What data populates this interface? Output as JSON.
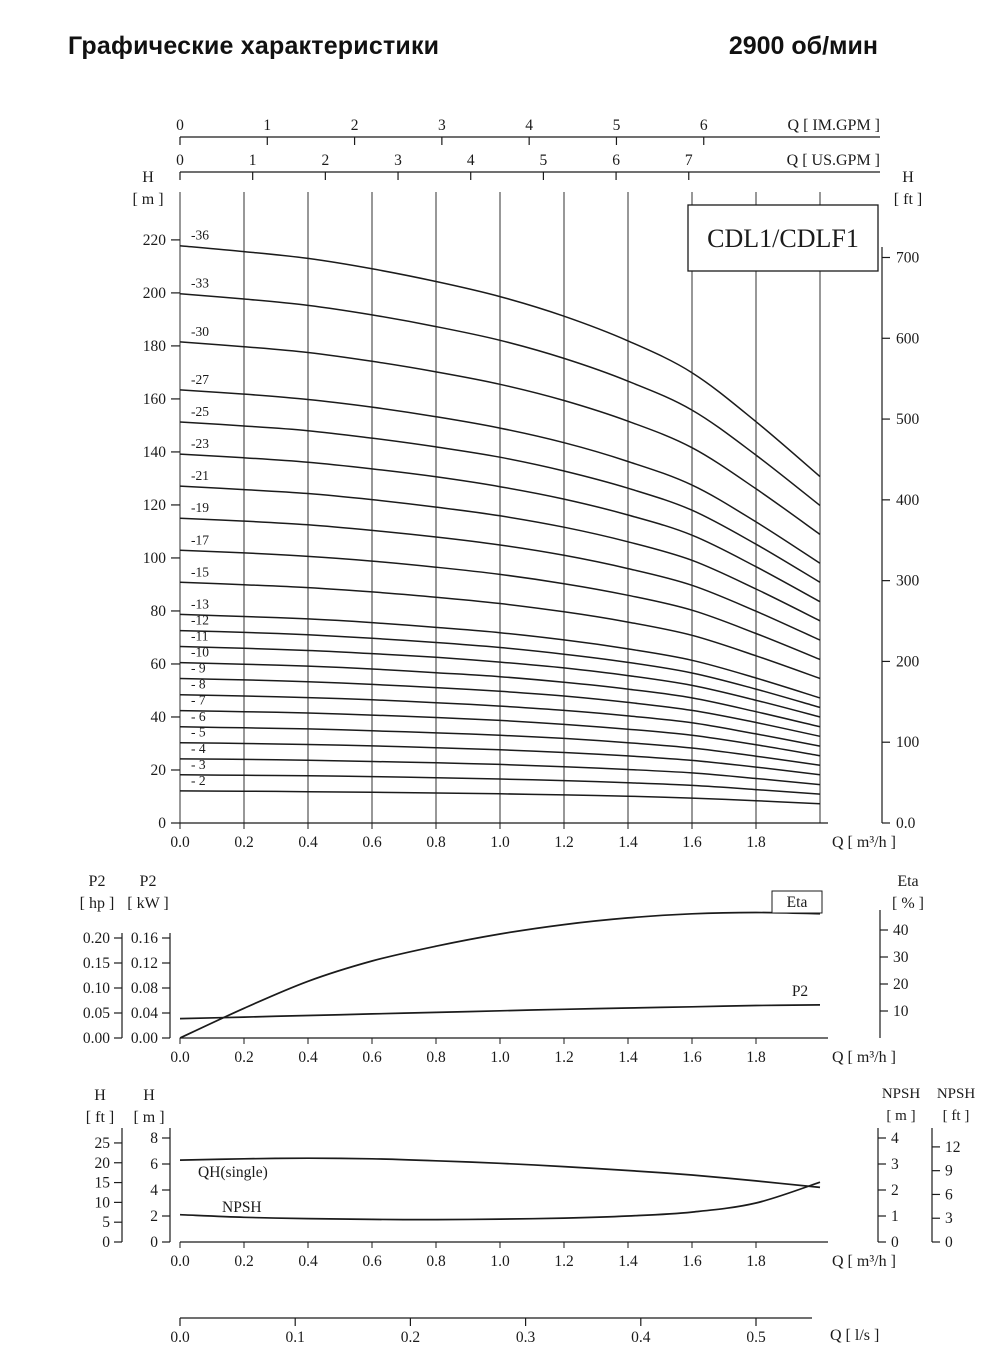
{
  "title": "Графические характеристики",
  "rpm": "2900 об/мин",
  "model": "CDL1/CDLF1",
  "colors": {
    "ink": "#1b1b1b",
    "background": "#ffffff"
  },
  "chart_data": [
    {
      "id": "hq",
      "type": "line",
      "title": "CDL1/CDLF1",
      "x": [
        0,
        0.2,
        0.4,
        0.6,
        0.8,
        1.0,
        1.2,
        1.4,
        1.6,
        1.8,
        2.0
      ],
      "x_axis": {
        "label": "Q [ m³/h ]",
        "tick_labels": [
          "0.0",
          "0.2",
          "0.4",
          "0.6",
          "0.8",
          "1.0",
          "1.2",
          "1.4",
          "1.6",
          "1.8"
        ],
        "range": [
          0,
          2.0
        ],
        "grid": true
      },
      "x_top_im": {
        "label": "Q [ IM.GPM ]",
        "ticks": [
          "0",
          "1",
          "2",
          "3",
          "4",
          "5",
          "6"
        ]
      },
      "x_top_us": {
        "label": "Q [ US.GPM ]",
        "ticks": [
          "0",
          "1",
          "2",
          "3",
          "4",
          "5",
          "6",
          "7"
        ]
      },
      "y_left": {
        "name": "H",
        "unit": "[ m ]",
        "ticks": [
          0,
          20,
          40,
          60,
          80,
          100,
          120,
          140,
          160,
          180,
          200,
          220
        ],
        "range": [
          0,
          238
        ]
      },
      "y_right": {
        "name": "H",
        "unit": "[ ft ]",
        "tick_labels": [
          "0.0",
          "100",
          "200",
          "300",
          "400",
          "500",
          "600",
          "700"
        ]
      },
      "series": [
        {
          "label": "-36",
          "stages": 36,
          "H_m": [
            217.8,
            215.6,
            213.0,
            209.1,
            204.3,
            198.6,
            191.2,
            181.9,
            169.9,
            151.4,
            130.7
          ]
        },
        {
          "label": "-33",
          "stages": 33,
          "H_m": [
            199.7,
            197.7,
            195.3,
            191.7,
            187.3,
            182.1,
            175.3,
            166.7,
            155.8,
            138.8,
            119.8
          ]
        },
        {
          "label": "-30",
          "stages": 30,
          "H_m": [
            181.5,
            179.7,
            177.5,
            174.2,
            170.2,
            165.5,
            159.4,
            151.6,
            141.6,
            126.1,
            108.9
          ]
        },
        {
          "label": "-27",
          "stages": 27,
          "H_m": [
            163.4,
            161.8,
            159.8,
            156.9,
            153.3,
            149.0,
            143.5,
            136.4,
            127.5,
            113.6,
            98.0
          ]
        },
        {
          "label": "-25",
          "stages": 25,
          "H_m": [
            151.3,
            149.8,
            148.0,
            145.2,
            141.9,
            138.0,
            132.8,
            126.3,
            118.0,
            105.2,
            90.8
          ]
        },
        {
          "label": "-23",
          "stages": 23,
          "H_m": [
            139.2,
            137.8,
            136.1,
            133.6,
            130.6,
            126.9,
            122.2,
            116.2,
            108.6,
            96.7,
            83.5
          ]
        },
        {
          "label": "-21",
          "stages": 21,
          "H_m": [
            127.1,
            125.8,
            124.3,
            122.0,
            119.2,
            115.9,
            111.6,
            106.1,
            99.1,
            88.3,
            76.3
          ]
        },
        {
          "label": "-19",
          "stages": 19,
          "H_m": [
            115.0,
            113.9,
            112.5,
            110.4,
            107.9,
            104.9,
            101.0,
            96.0,
            89.7,
            79.9,
            69.0
          ]
        },
        {
          "label": "-17",
          "stages": 17,
          "H_m": [
            102.9,
            101.9,
            100.6,
            98.8,
            96.5,
            93.8,
            90.3,
            85.9,
            80.3,
            71.5,
            61.7
          ]
        },
        {
          "label": "-15",
          "stages": 15,
          "H_m": [
            90.8,
            89.9,
            88.8,
            87.2,
            85.2,
            82.8,
            79.7,
            75.8,
            70.8,
            63.1,
            54.5
          ]
        },
        {
          "label": "-13",
          "stages": 13,
          "H_m": [
            78.7,
            77.9,
            77.0,
            75.6,
            73.8,
            71.8,
            69.1,
            65.7,
            61.4,
            54.7,
            47.2
          ]
        },
        {
          "label": "-12",
          "stages": 12,
          "H_m": [
            72.6,
            71.9,
            71.0,
            69.7,
            68.1,
            66.2,
            63.7,
            60.6,
            56.6,
            50.5,
            43.6
          ]
        },
        {
          "label": "-11",
          "stages": 11,
          "H_m": [
            66.6,
            65.9,
            65.1,
            63.9,
            62.5,
            60.7,
            58.5,
            55.6,
            51.9,
            46.3,
            40.0
          ]
        },
        {
          "label": "-10",
          "stages": 10,
          "H_m": [
            60.5,
            59.9,
            59.2,
            58.1,
            56.7,
            55.2,
            53.1,
            50.5,
            47.2,
            42.0,
            36.3
          ]
        },
        {
          "label": "- 9",
          "stages": 9,
          "H_m": [
            54.5,
            54.0,
            53.3,
            52.3,
            51.1,
            49.7,
            47.9,
            45.5,
            42.5,
            37.9,
            32.7
          ]
        },
        {
          "label": "- 8",
          "stages": 8,
          "H_m": [
            48.4,
            47.9,
            47.3,
            46.5,
            45.4,
            44.1,
            42.5,
            40.4,
            37.8,
            33.6,
            29.0
          ]
        },
        {
          "label": "- 7",
          "stages": 7,
          "H_m": [
            42.4,
            42.0,
            41.5,
            40.7,
            39.8,
            38.7,
            37.2,
            35.4,
            33.1,
            29.5,
            25.4
          ]
        },
        {
          "label": "- 6",
          "stages": 6,
          "H_m": [
            36.3,
            35.9,
            35.5,
            34.8,
            34.0,
            33.1,
            31.9,
            30.3,
            28.3,
            25.2,
            21.8
          ]
        },
        {
          "label": "- 5",
          "stages": 5,
          "H_m": [
            30.3,
            30.0,
            29.6,
            29.1,
            28.4,
            27.6,
            26.6,
            25.3,
            23.6,
            21.1,
            18.2
          ]
        },
        {
          "label": "- 4",
          "stages": 4,
          "H_m": [
            24.2,
            24.0,
            23.7,
            23.2,
            22.7,
            22.1,
            21.2,
            20.2,
            18.9,
            16.8,
            14.5
          ]
        },
        {
          "label": "- 3",
          "stages": 3,
          "H_m": [
            18.2,
            18.0,
            17.8,
            17.5,
            17.1,
            16.6,
            16.0,
            15.2,
            14.2,
            12.6,
            10.9
          ]
        },
        {
          "label": "- 2",
          "stages": 2,
          "H_m": [
            12.1,
            12.0,
            11.8,
            11.6,
            11.3,
            11.0,
            10.6,
            10.1,
            9.4,
            8.4,
            7.3
          ]
        }
      ]
    },
    {
      "id": "p2eta",
      "type": "line",
      "x": [
        0,
        0.2,
        0.4,
        0.6,
        0.8,
        1.0,
        1.2,
        1.4,
        1.6,
        1.8,
        2.0
      ],
      "x_axis": {
        "label": "Q [ m³/h ]",
        "tick_labels": [
          "0.0",
          "0.2",
          "0.4",
          "0.6",
          "0.8",
          "1.0",
          "1.2",
          "1.4",
          "1.6",
          "1.8"
        ],
        "range": [
          0,
          2.0
        ],
        "grid": false
      },
      "y_left": [
        {
          "name": "P2",
          "unit": "[ hp ]",
          "tick_labels": [
            "0.00",
            "0.05",
            "0.10",
            "0.15",
            "0.20"
          ]
        },
        {
          "name": "P2",
          "unit": "[ kW ]",
          "tick_labels": [
            "0.00",
            "0.04",
            "0.08",
            "0.12",
            "0.16"
          ]
        }
      ],
      "y_right": {
        "name": "Eta",
        "unit": "[ % ]",
        "tick_labels": [
          "10",
          "20",
          "30",
          "40"
        ]
      },
      "series": [
        {
          "label": "Eta",
          "axis": "right_pct",
          "values_pct": [
            0,
            11,
            21,
            28.5,
            34,
            38.5,
            42,
            44.5,
            46,
            46.5,
            46
          ]
        },
        {
          "label": "P2",
          "axis": "left_kw",
          "values_kw": [
            0.031,
            0.0335,
            0.036,
            0.0385,
            0.041,
            0.0435,
            0.046,
            0.048,
            0.05,
            0.052,
            0.053
          ]
        }
      ]
    },
    {
      "id": "npsh",
      "type": "line",
      "x": [
        0,
        0.2,
        0.4,
        0.6,
        0.8,
        1.0,
        1.2,
        1.4,
        1.6,
        1.8,
        2.0
      ],
      "x_axis": {
        "label": "Q [ m³/h ]",
        "tick_labels": [
          "0.0",
          "0.2",
          "0.4",
          "0.6",
          "0.8",
          "1.0",
          "1.2",
          "1.4",
          "1.6",
          "1.8"
        ],
        "range": [
          0,
          2.0
        ],
        "grid": false
      },
      "x_ls": {
        "label": "Q [ l/s ]",
        "tick_labels": [
          "0.0",
          "0.1",
          "0.2",
          "0.3",
          "0.4",
          "0.5"
        ]
      },
      "y_left": [
        {
          "name": "H",
          "unit": "[ ft ]",
          "ticks": [
            0,
            5,
            10,
            15,
            20,
            25
          ]
        },
        {
          "name": "H",
          "unit": "[ m ]",
          "ticks": [
            0,
            2,
            4,
            6,
            8
          ]
        }
      ],
      "y_right": [
        {
          "name": "NPSH",
          "unit": "[ m ]",
          "ticks": [
            0,
            1,
            2,
            3,
            4
          ]
        },
        {
          "name": "NPSH",
          "unit": "[ ft ]",
          "ticks": [
            0,
            3,
            6,
            9,
            12
          ]
        }
      ],
      "series": [
        {
          "label": "QH(single)",
          "axis": "left_m",
          "values_m": [
            6.3,
            6.4,
            6.45,
            6.4,
            6.25,
            6.05,
            5.8,
            5.5,
            5.15,
            4.7,
            4.2
          ]
        },
        {
          "label": "NPSH",
          "axis": "right_m",
          "values_m": [
            1.05,
            0.95,
            0.9,
            0.87,
            0.86,
            0.88,
            0.92,
            1.0,
            1.15,
            1.5,
            2.3
          ]
        }
      ]
    }
  ]
}
